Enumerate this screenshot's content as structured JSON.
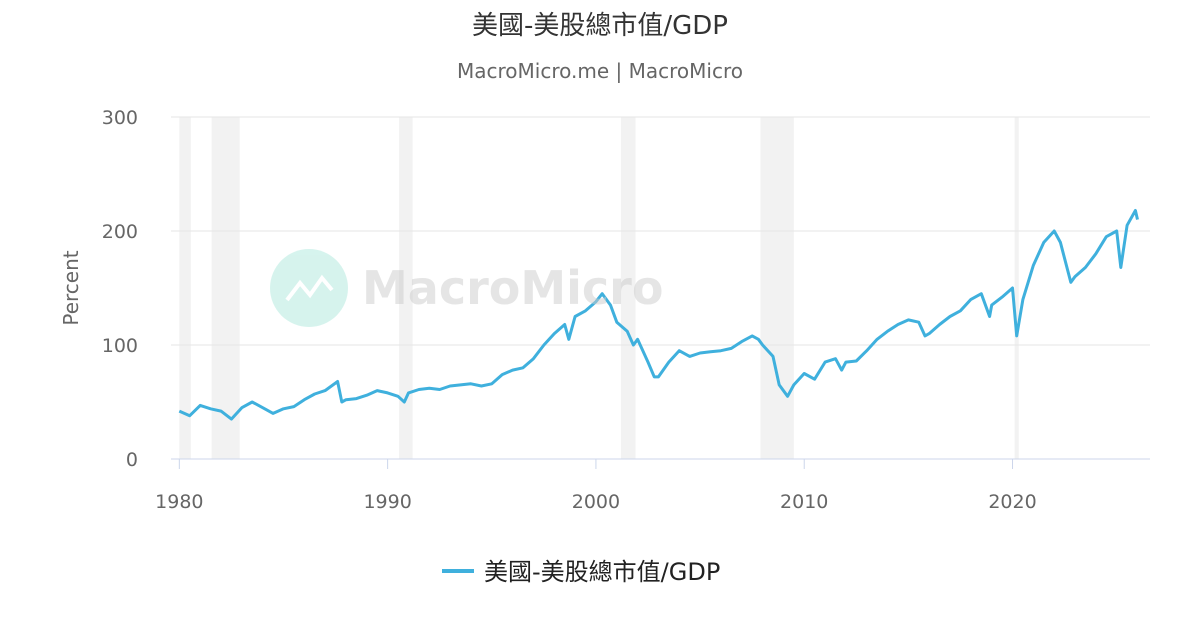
{
  "chart_data": {
    "type": "line",
    "title": "美國-美股總市值/GDP",
    "subtitle": "MacroMicro.me | MacroMicro",
    "watermark": "MacroMicro",
    "y_label": "Percent",
    "xlim": [
      1979.6,
      2026.6
    ],
    "xticks": [
      1980,
      1990,
      2000,
      2010,
      2020
    ],
    "ylim": [
      0,
      300
    ],
    "yticks": [
      0,
      100,
      200,
      300
    ],
    "grid": true,
    "recessions": [
      [
        1980.0,
        1980.55
      ],
      [
        1981.55,
        1982.9
      ],
      [
        1990.55,
        1991.2
      ],
      [
        2001.2,
        2001.9
      ],
      [
        2007.9,
        2009.5
      ],
      [
        2020.1,
        2020.3
      ]
    ],
    "x": [
      1980.0,
      1980.5,
      1981,
      1981.5,
      1982,
      1982.5,
      1983,
      1983.5,
      1984,
      1984.5,
      1985,
      1985.5,
      1986,
      1986.5,
      1987,
      1987.6,
      1987.8,
      1988,
      1988.5,
      1989,
      1989.5,
      1990,
      1990.5,
      1990.8,
      1991,
      1991.5,
      1992,
      1992.5,
      1993,
      1993.5,
      1994,
      1994.5,
      1995,
      1995.5,
      1996,
      1996.5,
      1997,
      1997.5,
      1998,
      1998.5,
      1998.7,
      1999,
      1999.5,
      2000,
      2000.3,
      2000.7,
      2001,
      2001.5,
      2001.8,
      2002,
      2002.5,
      2002.8,
      2003,
      2003.5,
      2004,
      2004.5,
      2005,
      2005.5,
      2006,
      2006.5,
      2007,
      2007.5,
      2007.8,
      2008,
      2008.5,
      2008.8,
      2009.2,
      2009.5,
      2010,
      2010.5,
      2011,
      2011.5,
      2011.8,
      2012,
      2012.5,
      2013,
      2013.5,
      2014,
      2014.5,
      2015,
      2015.5,
      2015.8,
      2016,
      2016.5,
      2017,
      2017.5,
      2018,
      2018.5,
      2018.9,
      2019,
      2019.5,
      2020,
      2020.2,
      2020.5,
      2021,
      2021.5,
      2022,
      2022.3,
      2022.8,
      2023,
      2023.5,
      2024,
      2024.5,
      2025,
      2025.2,
      2025.5,
      2025.9,
      2026
    ],
    "series": [
      {
        "name": "美國-美股總市值/GDP",
        "color": "#3fb0dd",
        "values": [
          42,
          38,
          47,
          44,
          42,
          35,
          45,
          50,
          45,
          40,
          44,
          46,
          52,
          57,
          60,
          68,
          50,
          52,
          53,
          56,
          60,
          58,
          55,
          50,
          58,
          61,
          62,
          61,
          64,
          65,
          66,
          64,
          66,
          74,
          78,
          80,
          88,
          100,
          110,
          118,
          105,
          125,
          130,
          138,
          145,
          135,
          120,
          112,
          100,
          105,
          85,
          72,
          72,
          85,
          95,
          90,
          93,
          94,
          95,
          97,
          103,
          108,
          105,
          100,
          90,
          65,
          55,
          65,
          75,
          70,
          85,
          88,
          78,
          85,
          86,
          95,
          105,
          112,
          118,
          122,
          120,
          108,
          110,
          118,
          125,
          130,
          140,
          145,
          125,
          135,
          142,
          150,
          108,
          140,
          170,
          190,
          200,
          190,
          155,
          160,
          168,
          180,
          195,
          200,
          168,
          205,
          218,
          210
        ]
      }
    ]
  }
}
